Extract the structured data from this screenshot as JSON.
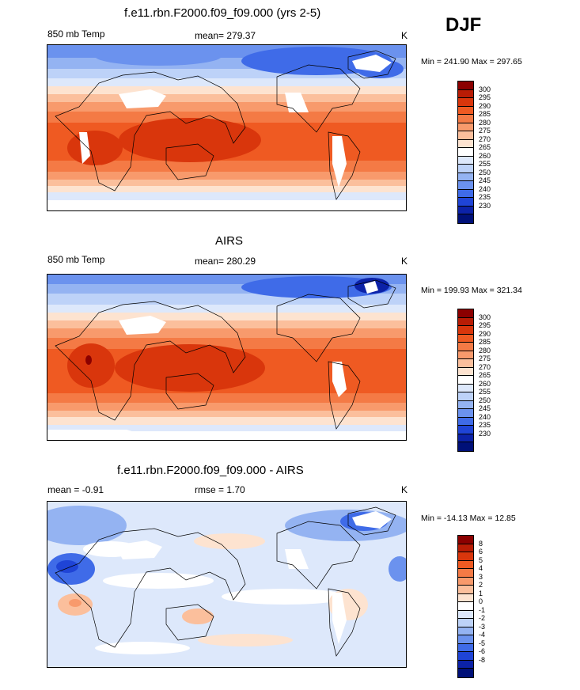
{
  "season": "DJF",
  "units": "K",
  "panels": [
    {
      "id": "model",
      "title": "f.e11.rbn.F2000.f09_f09.000 (yrs 2-5)",
      "left_label": "850 mb Temp",
      "center_label": "mean= 279.37",
      "right_label": "K",
      "minmax": "Min = 241.90 Max = 297.65",
      "colorbar_labels": [
        "300",
        "295",
        "290",
        "285",
        "280",
        "275",
        "270",
        "265",
        "260",
        "255",
        "250",
        "245",
        "240",
        "235",
        "230"
      ],
      "colorbar_colors": [
        "#8b0000",
        "#b81c05",
        "#d9360c",
        "#ef5a22",
        "#f47a45",
        "#f89a6c",
        "#fbbf9c",
        "#fde3d0",
        "#ffffff",
        "#dde8fb",
        "#bdd2f8",
        "#94b3f2",
        "#6b92ee",
        "#3f6be8",
        "#1f44d6",
        "#0c22a8",
        "#001078"
      ]
    },
    {
      "id": "obs",
      "title": "AIRS",
      "left_label": "850 mb Temp",
      "center_label": "mean= 280.29",
      "right_label": "K",
      "minmax": "Min = 199.93 Max = 321.34",
      "colorbar_labels": [
        "300",
        "295",
        "290",
        "285",
        "280",
        "275",
        "270",
        "265",
        "260",
        "255",
        "250",
        "245",
        "240",
        "235",
        "230"
      ],
      "colorbar_colors": [
        "#8b0000",
        "#b81c05",
        "#d9360c",
        "#ef5a22",
        "#f47a45",
        "#f89a6c",
        "#fbbf9c",
        "#fde3d0",
        "#ffffff",
        "#dde8fb",
        "#bdd2f8",
        "#94b3f2",
        "#6b92ee",
        "#3f6be8",
        "#1f44d6",
        "#0c22a8",
        "#001078"
      ]
    },
    {
      "id": "diff",
      "title": "f.e11.rbn.F2000.f09_f09.000 - AIRS",
      "left_label": "mean =  -0.91",
      "center_label": "rmse =   1.70",
      "right_label": "K",
      "minmax": "Min = -14.13 Max =  12.85",
      "colorbar_labels": [
        "8",
        "6",
        "5",
        "4",
        "3",
        "2",
        "1",
        "0",
        "-1",
        "-2",
        "-3",
        "-4",
        "-5",
        "-6",
        "-8"
      ],
      "colorbar_colors": [
        "#8b0000",
        "#b81c05",
        "#d9360c",
        "#ef5a22",
        "#f47a45",
        "#f89a6c",
        "#fbbf9c",
        "#fde3d0",
        "#ffffff",
        "#dde8fb",
        "#bdd2f8",
        "#94b3f2",
        "#6b92ee",
        "#3f6be8",
        "#1f44d6",
        "#0c22a8",
        "#001078"
      ]
    }
  ]
}
